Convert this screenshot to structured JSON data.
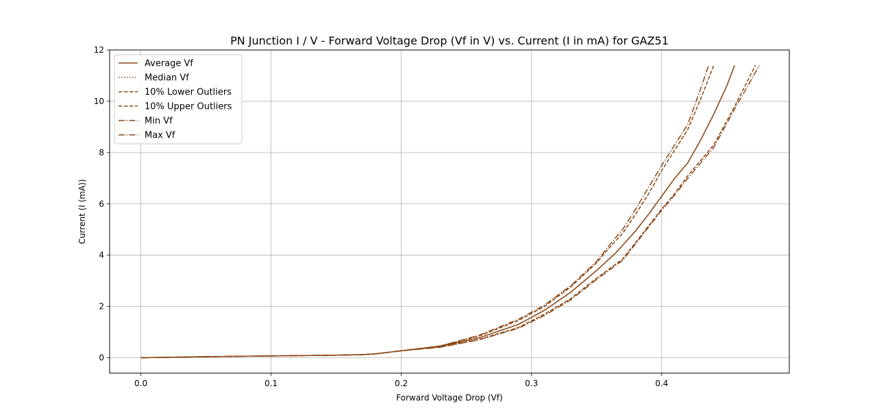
{
  "chart_data": {
    "type": "line",
    "title": "PN Junction I / V - Forward Voltage Drop (Vf in V) vs. Current (I in mA) for GAZ51",
    "xlabel": "Forward Voltage Drop (Vf)",
    "ylabel": "Current (I (mA))",
    "xlim": [
      -0.024,
      0.498
    ],
    "ylim": [
      -0.6,
      12.0
    ],
    "xticks": [
      0.0,
      0.1,
      0.2,
      0.3,
      0.4
    ],
    "xtick_labels": [
      "0.0",
      "0.1",
      "0.2",
      "0.3",
      "0.4"
    ],
    "yticks": [
      0,
      2,
      4,
      6,
      8,
      10,
      12
    ],
    "ytick_labels": [
      "0",
      "2",
      "4",
      "6",
      "8",
      "10",
      "12"
    ],
    "grid": true,
    "legend_position": "top-left",
    "color": "#8B4513",
    "series": [
      {
        "name": "Average Vf",
        "style": "solid",
        "x": [
          0.0,
          0.05,
          0.1,
          0.15,
          0.17,
          0.18,
          0.2,
          0.23,
          0.26,
          0.29,
          0.31,
          0.33,
          0.35,
          0.365,
          0.38,
          0.39,
          0.4,
          0.41,
          0.42,
          0.43,
          0.44,
          0.45,
          0.456
        ],
        "y": [
          0.0,
          0.04,
          0.07,
          0.1,
          0.12,
          0.15,
          0.27,
          0.45,
          0.78,
          1.3,
          1.85,
          2.55,
          3.4,
          4.1,
          4.95,
          5.6,
          6.3,
          7.0,
          7.6,
          8.5,
          9.5,
          10.6,
          11.4
        ]
      },
      {
        "name": "Median Vf",
        "style": "dotted",
        "x": [
          0.0,
          0.05,
          0.1,
          0.15,
          0.17,
          0.18,
          0.2,
          0.23,
          0.26,
          0.29,
          0.31,
          0.33,
          0.35,
          0.365,
          0.38,
          0.39,
          0.4,
          0.41,
          0.42,
          0.43,
          0.44,
          0.45,
          0.456
        ],
        "y": [
          0.0,
          0.04,
          0.07,
          0.1,
          0.12,
          0.15,
          0.27,
          0.45,
          0.78,
          1.3,
          1.85,
          2.55,
          3.4,
          4.1,
          4.95,
          5.6,
          6.3,
          7.0,
          7.6,
          8.5,
          9.5,
          10.6,
          11.4
        ]
      },
      {
        "name": "10% Lower Outliers",
        "style": "dashed",
        "x": [
          0.0,
          0.05,
          0.1,
          0.15,
          0.17,
          0.18,
          0.2,
          0.23,
          0.26,
          0.29,
          0.31,
          0.33,
          0.35,
          0.37,
          0.38,
          0.39,
          0.4,
          0.41,
          0.42,
          0.43,
          0.44,
          0.456,
          0.472
        ],
        "y": [
          0.0,
          0.04,
          0.07,
          0.1,
          0.12,
          0.15,
          0.27,
          0.42,
          0.72,
          1.18,
          1.7,
          2.3,
          3.1,
          3.85,
          4.5,
          5.15,
          5.8,
          6.4,
          7.1,
          7.7,
          8.3,
          9.8,
          11.4
        ]
      },
      {
        "name": "10% Upper Outliers",
        "style": "dashed",
        "x": [
          0.0,
          0.05,
          0.1,
          0.15,
          0.17,
          0.18,
          0.2,
          0.23,
          0.26,
          0.29,
          0.31,
          0.33,
          0.35,
          0.36,
          0.37,
          0.38,
          0.39,
          0.4,
          0.41,
          0.42,
          0.43,
          0.44
        ],
        "y": [
          0.0,
          0.04,
          0.07,
          0.1,
          0.12,
          0.15,
          0.27,
          0.46,
          0.85,
          1.45,
          2.0,
          2.75,
          3.7,
          4.3,
          4.85,
          5.6,
          6.4,
          7.3,
          8.1,
          8.9,
          10.1,
          11.4
        ]
      },
      {
        "name": "Min Vf",
        "style": "dashdot",
        "x": [
          0.0,
          0.05,
          0.1,
          0.15,
          0.17,
          0.18,
          0.2,
          0.23,
          0.26,
          0.29,
          0.31,
          0.33,
          0.35,
          0.36,
          0.37,
          0.38,
          0.39,
          0.4,
          0.41,
          0.42,
          0.43,
          0.436
        ],
        "y": [
          0.0,
          0.04,
          0.07,
          0.1,
          0.12,
          0.15,
          0.27,
          0.46,
          0.88,
          1.5,
          2.05,
          2.8,
          3.75,
          4.4,
          5.0,
          5.8,
          6.65,
          7.5,
          8.3,
          9.1,
          10.5,
          11.4
        ]
      },
      {
        "name": "Max Vf",
        "style": "dashdot",
        "x": [
          0.0,
          0.05,
          0.1,
          0.15,
          0.17,
          0.18,
          0.2,
          0.23,
          0.26,
          0.29,
          0.31,
          0.33,
          0.35,
          0.37,
          0.38,
          0.39,
          0.4,
          0.41,
          0.42,
          0.43,
          0.44,
          0.456,
          0.475
        ],
        "y": [
          0.0,
          0.04,
          0.07,
          0.1,
          0.12,
          0.15,
          0.27,
          0.41,
          0.7,
          1.15,
          1.65,
          2.25,
          3.05,
          3.8,
          4.45,
          5.1,
          5.75,
          6.35,
          7.0,
          7.6,
          8.2,
          9.7,
          11.4
        ]
      }
    ]
  }
}
